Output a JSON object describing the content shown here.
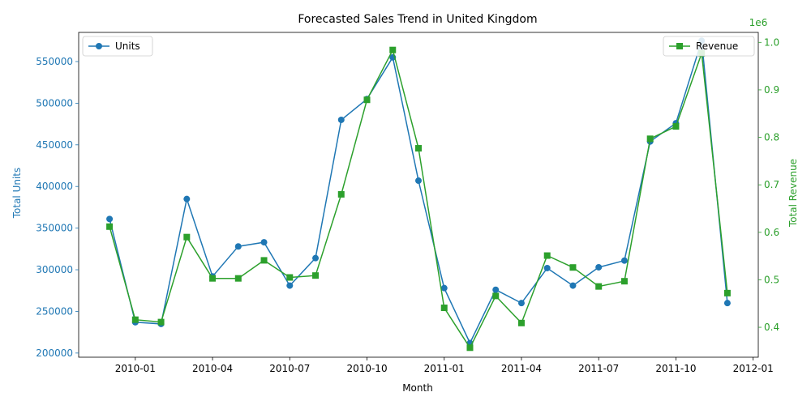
{
  "chart_data": {
    "type": "line",
    "title": "Forecasted Sales Trend in United Kingdom",
    "xlabel": "Month",
    "x_ticks": [
      "2010-01",
      "2010-04",
      "2010-07",
      "2010-10",
      "2011-01",
      "2011-04",
      "2011-07",
      "2011-10",
      "2012-01"
    ],
    "x": [
      "2009-12",
      "2010-01",
      "2010-02",
      "2010-03",
      "2010-04",
      "2010-05",
      "2010-06",
      "2010-07",
      "2010-08",
      "2010-09",
      "2010-10",
      "2010-11",
      "2010-12",
      "2011-01",
      "2011-02",
      "2011-03",
      "2011-04",
      "2011-05",
      "2011-06",
      "2011-07",
      "2011-08",
      "2011-09",
      "2011-10",
      "2011-11",
      "2011-12"
    ],
    "left_axis": {
      "label": "Total Units",
      "color": "#1f77b4",
      "ylim": [
        195000,
        585000
      ],
      "ticks": [
        200000,
        250000,
        300000,
        350000,
        400000,
        450000,
        500000,
        550000
      ]
    },
    "right_axis": {
      "label": "Total Revenue",
      "color": "#2ca02c",
      "offset_text": "1e6",
      "ylim": [
        0.337,
        1.021
      ],
      "ticks": [
        0.4,
        0.5,
        0.6,
        0.7,
        0.8,
        0.9,
        1.0
      ]
    },
    "series": [
      {
        "name": "Units",
        "axis": "left",
        "color": "#1f77b4",
        "marker": "circle",
        "legend_position": "top-left",
        "values": [
          361000,
          237000,
          235000,
          385000,
          292000,
          328000,
          333000,
          281000,
          314000,
          480000,
          505000,
          555000,
          407000,
          278000,
          212000,
          276000,
          260000,
          302000,
          281000,
          303000,
          311000,
          454000,
          476000,
          575000,
          260000
        ]
      },
      {
        "name": "Revenue",
        "axis": "right",
        "color": "#2ca02c",
        "marker": "square",
        "legend_position": "top-right",
        "values": [
          0.612,
          0.416,
          0.411,
          0.59,
          0.503,
          0.503,
          0.541,
          0.505,
          0.509,
          0.68,
          0.879,
          0.984,
          0.777,
          0.441,
          0.357,
          0.466,
          0.409,
          0.551,
          0.526,
          0.486,
          0.497,
          0.797,
          0.823,
          0.977,
          0.472
        ]
      }
    ]
  }
}
